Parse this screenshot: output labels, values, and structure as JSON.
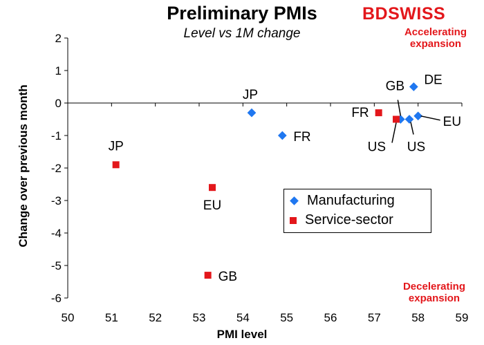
{
  "title": "Preliminary PMIs",
  "subtitle": "Level vs 1M change",
  "logo": "BDSWISS",
  "annotations": {
    "top_right": "Accelerating expansion",
    "bottom_right": "Decelerating expansion"
  },
  "colors": {
    "manufacturing": "#1f77f0",
    "service": "#e3171b",
    "brand": "#e3171b"
  },
  "chart_data": {
    "type": "scatter",
    "xlabel": "PMI level",
    "ylabel": "Change over previous month",
    "xlim": [
      50,
      59
    ],
    "ylim": [
      -6,
      2
    ],
    "xticks": [
      "50",
      "51",
      "52",
      "53",
      "54",
      "55",
      "56",
      "57",
      "58",
      "59"
    ],
    "yticks": [
      "2",
      "1",
      "0",
      "-1",
      "-2",
      "-3",
      "-4",
      "-5",
      "-6"
    ],
    "grid": false,
    "legend_position": "right-middle",
    "series": [
      {
        "name": "Manufacturing",
        "marker": "diamond",
        "points": [
          {
            "label": "JP",
            "x": 54.2,
            "y": -0.3
          },
          {
            "label": "FR",
            "x": 54.9,
            "y": -1.0
          },
          {
            "label": "DE",
            "x": 57.9,
            "y": 0.5
          },
          {
            "label": "GB",
            "x": 57.6,
            "y": -0.5
          },
          {
            "label": "US",
            "x": 57.8,
            "y": -0.5
          },
          {
            "label": "EU",
            "x": 58.0,
            "y": -0.4
          }
        ]
      },
      {
        "name": "Service-sector",
        "marker": "square",
        "points": [
          {
            "label": "JP",
            "x": 51.1,
            "y": -1.9
          },
          {
            "label": "EU",
            "x": 53.3,
            "y": -2.6
          },
          {
            "label": "GB",
            "x": 53.2,
            "y": -5.3
          },
          {
            "label": "FR",
            "x": 57.1,
            "y": -0.3
          },
          {
            "label": "US",
            "x": 57.5,
            "y": -0.5
          }
        ]
      }
    ]
  }
}
